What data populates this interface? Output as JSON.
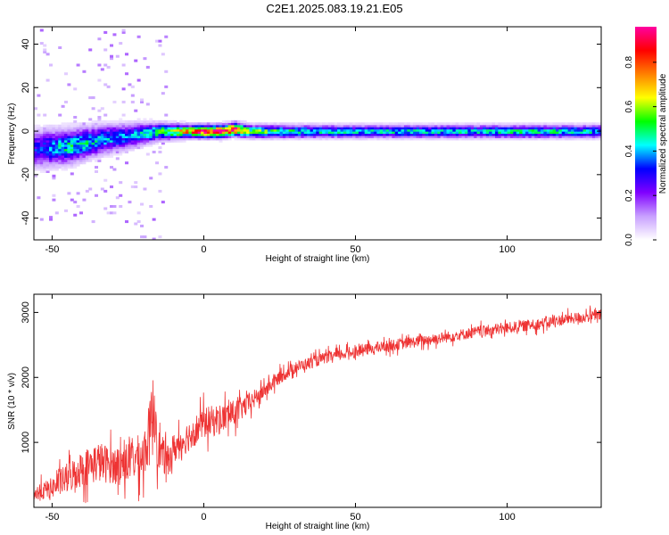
{
  "title": "C2E1.2025.083.19.21.E05",
  "chart_data": [
    {
      "type": "heatmap",
      "xlabel": "Height of straight line (km)",
      "ylabel": "Frequency (Hz)",
      "xlim": [
        -56,
        131
      ],
      "ylim": [
        -50,
        48
      ],
      "xticks": [
        -50,
        0,
        50,
        100
      ],
      "yticks": [
        -40,
        -20,
        0,
        20,
        40
      ],
      "grid": false,
      "colorbar": {
        "label": "Normalized spectral amplitude",
        "range": [
          0,
          0.96
        ],
        "ticks": [
          0,
          0.2,
          0.4,
          0.6,
          0.8
        ],
        "tick_labels": [
          "0.0",
          "0.2",
          "0.4",
          "0.6",
          "0.8"
        ],
        "colormap": [
          "#ffffff",
          "#c8a0ff",
          "#8000ff",
          "#0000ff",
          "#00ffff",
          "#00ff00",
          "#ffff00",
          "#ff8000",
          "#ff0000",
          "#ff00a0"
        ]
      },
      "description_of_content": "",
      "ridge": {
        "x": [
          -56,
          -45,
          -35,
          -25,
          -15,
          -5,
          0,
          5,
          10,
          15,
          30,
          50,
          80,
          110,
          131
        ],
        "center_hz": [
          -8,
          -7,
          -4,
          -2,
          0,
          0,
          0,
          0,
          1,
          0,
          0,
          0,
          0,
          0,
          0
        ],
        "halfwidth_hz": [
          9,
          8,
          7,
          6,
          4,
          3,
          3,
          3,
          3,
          3,
          3,
          3,
          3,
          3,
          3
        ],
        "peak_amplitude": [
          0.3,
          0.45,
          0.4,
          0.35,
          0.5,
          0.7,
          0.95,
          0.9,
          0.92,
          0.55,
          0.45,
          0.42,
          0.42,
          0.45,
          0.42
        ]
      }
    },
    {
      "type": "line",
      "xlabel": "Height of straight line (km)",
      "ylabel": "SNR (10 * v/v)",
      "xlim": [
        -56,
        131
      ],
      "ylim": [
        0,
        3280
      ],
      "xticks": [
        -50,
        0,
        50,
        100
      ],
      "yticks": [
        1000,
        2000,
        3000
      ],
      "grid": false,
      "series": [
        {
          "color": "#ee3333",
          "x": [
            -56,
            -50,
            -45,
            -40,
            -35,
            -30,
            -25,
            -20,
            -18,
            -16,
            -15,
            -12,
            -10,
            -5,
            0,
            5,
            10,
            15,
            20,
            25,
            30,
            40,
            50,
            60,
            70,
            80,
            90,
            100,
            110,
            120,
            131
          ],
          "y": [
            200,
            300,
            450,
            600,
            700,
            650,
            700,
            800,
            1100,
            1600,
            900,
            700,
            900,
            1100,
            1300,
            1350,
            1450,
            1600,
            1800,
            2000,
            2150,
            2300,
            2400,
            2480,
            2550,
            2620,
            2700,
            2760,
            2820,
            2900,
            2960
          ],
          "noise_amplitude": [
            150,
            200,
            300,
            350,
            400,
            350,
            400,
            450,
            600,
            900,
            400,
            300,
            300,
            300,
            300,
            300,
            250,
            200,
            150,
            130,
            120,
            110,
            110,
            110,
            110,
            110,
            110,
            110,
            110,
            110,
            110
          ]
        }
      ]
    }
  ]
}
